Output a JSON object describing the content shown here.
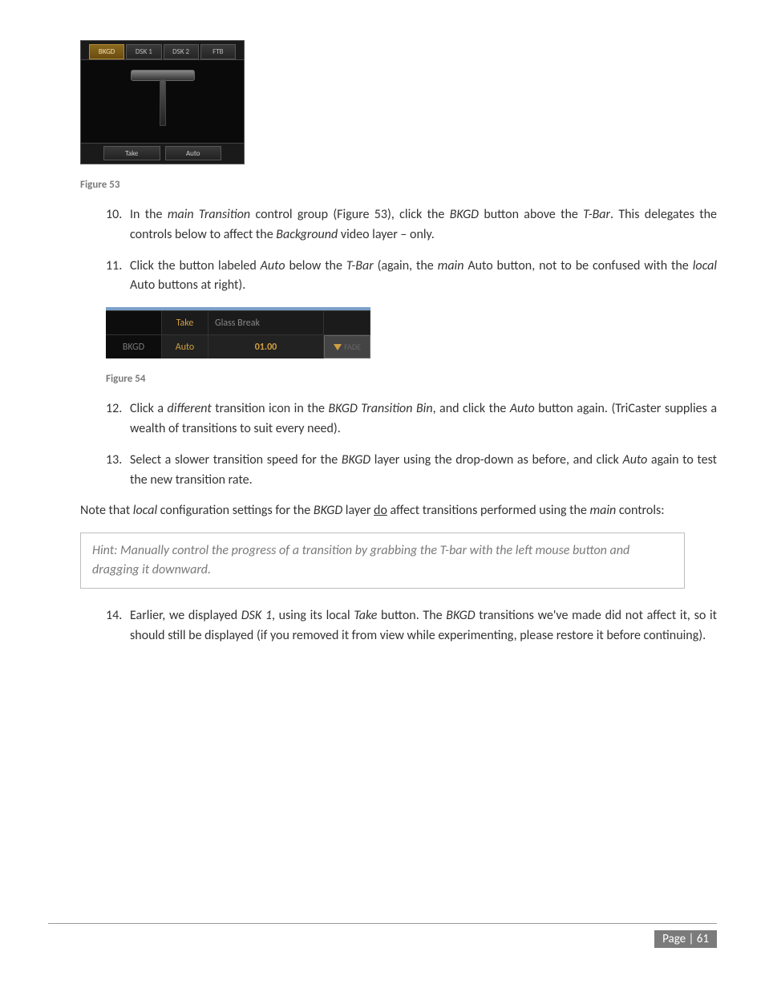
{
  "fig53": {
    "tabs": [
      "BKGD",
      "DSK 1",
      "DSK 2",
      "FTB"
    ],
    "buttons": [
      "Take",
      "Auto"
    ],
    "caption": "Figure 53"
  },
  "fig54": {
    "row1": {
      "take": "Take",
      "label": "Glass Break"
    },
    "row2": {
      "bkgd": "BKGD",
      "auto": "Auto",
      "time": "01.00",
      "fade": "FADE"
    },
    "caption": "Figure 54"
  },
  "items": {
    "i10": {
      "num": "10.",
      "text_a": "In the ",
      "it_a": "main Transition",
      "text_b": " control group (Figure 53), click the ",
      "it_b": "BKGD",
      "text_c": " button above the ",
      "it_c": "T-Bar",
      "text_d": ". This delegates the controls below to affect the ",
      "it_d": "Background",
      "text_e": " video layer – only."
    },
    "i11": {
      "num": "11.",
      "text_a": "Click the button labeled ",
      "it_a": "Auto",
      "text_b": " below the ",
      "it_b": "T-Bar",
      "text_c": " (again, the ",
      "it_c": "main",
      "text_d": " Auto button, not to be confused with the ",
      "it_d": "local",
      "text_e": " Auto buttons at right)."
    },
    "i12": {
      "num": "12.",
      "text_a": "Click a ",
      "it_a": "different",
      "text_b": " transition icon in the ",
      "it_b": "BKGD Transition Bin",
      "text_c": ", and click the ",
      "it_c": "Auto",
      "text_d": " button again. (TriCaster supplies a wealth of transitions to suit every need)."
    },
    "i13": {
      "num": "13.",
      "text_a": "Select a slower transition speed for the ",
      "it_a": "BKGD",
      "text_b": " layer using the drop-down as before, and click ",
      "it_b": "Auto",
      "text_c": " again to test the new transition rate."
    },
    "i14": {
      "num": "14.",
      "text_a": "Earlier, we displayed ",
      "it_a": "DSK 1",
      "text_b": ", using its local ",
      "it_b": "Take",
      "text_c": " button.  The ",
      "it_c": "BKGD",
      "text_d": " transitions we've made did not affect it, so it should still be displayed (if you removed it from view while experimenting, please restore it before continuing)."
    }
  },
  "note": {
    "a": "Note that ",
    "it_a": "local",
    "b": " configuration settings for the ",
    "it_b": "BKGD",
    "c": " layer ",
    "u": "do",
    "d": " affect transitions performed using the ",
    "it_c": "main",
    "e": " controls:"
  },
  "hint": "Hint: Manually control the progress of a transition by grabbing the T-bar with the left mouse button and dragging it downward.",
  "page": "Page | 61"
}
